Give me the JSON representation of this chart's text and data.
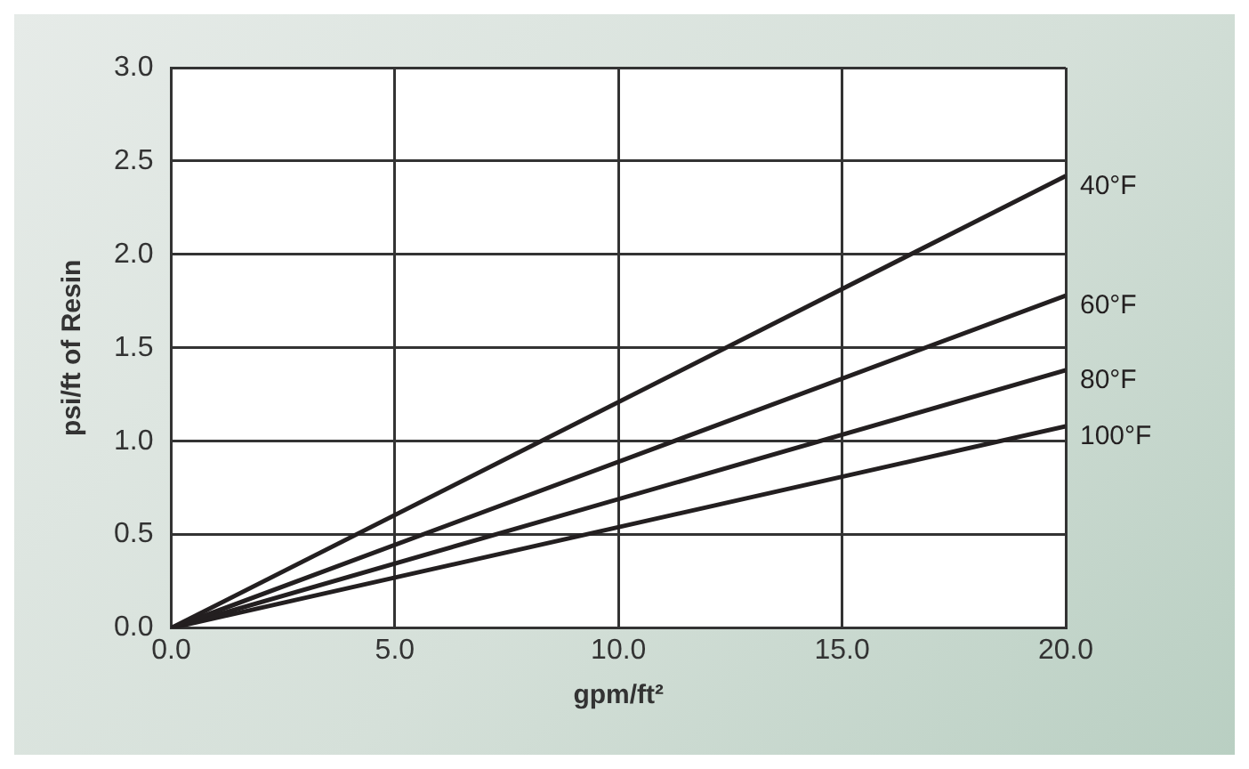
{
  "chart_data": {
    "type": "line",
    "xlabel": "gpm/ft²",
    "ylabel": "psi/ft of Resin",
    "x": [
      0,
      20
    ],
    "series": [
      {
        "name": "40°F",
        "color": "#231f20",
        "values": [
          0,
          2.42
        ]
      },
      {
        "name": "60°F",
        "color": "#231f20",
        "values": [
          0,
          1.78
        ]
      },
      {
        "name": "80°F",
        "color": "#231f20",
        "values": [
          0,
          1.38
        ]
      },
      {
        "name": "100°F",
        "color": "#231f20",
        "values": [
          0,
          1.08
        ]
      }
    ],
    "xlim": [
      0,
      20
    ],
    "xticks": [
      {
        "value": 0,
        "label": "0.0"
      },
      {
        "value": 5,
        "label": "5.0"
      },
      {
        "value": 10,
        "label": "10.0"
      },
      {
        "value": 15,
        "label": "15.0"
      },
      {
        "value": 20,
        "label": "20.0"
      }
    ],
    "ylim": [
      0,
      3
    ],
    "yticks": [
      {
        "value": 0,
        "label": "0.0"
      },
      {
        "value": 0.5,
        "label": "0.5"
      },
      {
        "value": 1,
        "label": "1.0"
      },
      {
        "value": 1.5,
        "label": "1.5"
      },
      {
        "value": 2,
        "label": "2.0"
      },
      {
        "value": 2.5,
        "label": "2.5"
      },
      {
        "value": 3,
        "label": "3.0"
      }
    ],
    "grid": true,
    "legend": false,
    "marker": "none",
    "line_style": "solid"
  }
}
